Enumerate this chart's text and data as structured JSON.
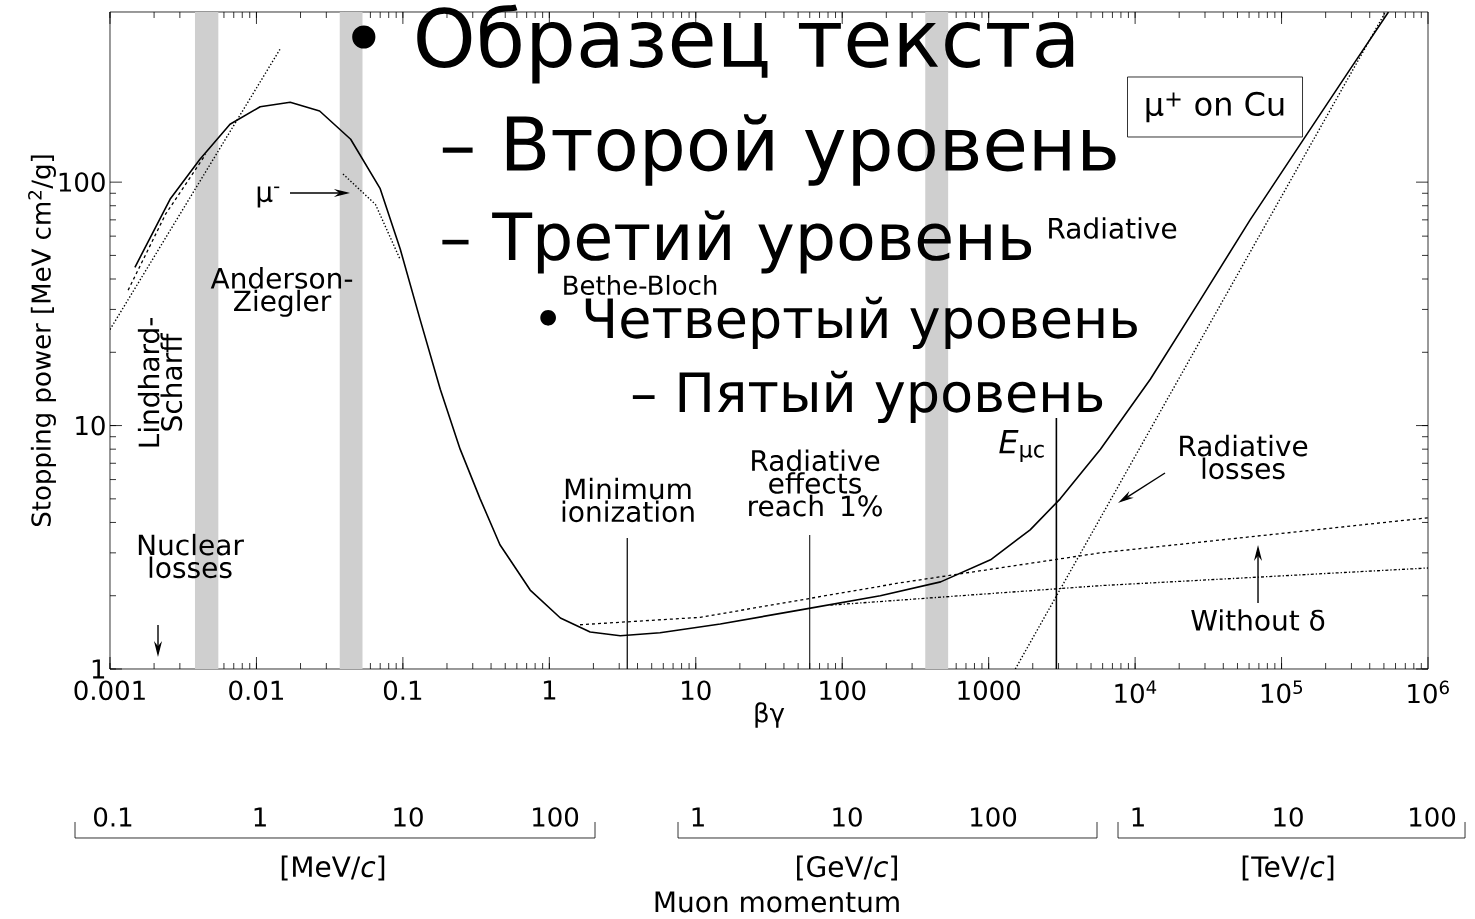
{
  "chart_data": {
    "type": "line",
    "title": "μ$^{+}$ on Cu",
    "xlabel": "βγ",
    "ylabel": "Stopping power [MeV cm$^{2}$/g]",
    "log": "xy",
    "xlim": [
      0.001,
      1000000
    ],
    "ylim": [
      1,
      500
    ],
    "xticks": [
      0.001,
      0.01,
      0.1,
      1,
      10,
      100,
      1000,
      {
        "value": 10000,
        "label": "10$^{4}$"
      },
      {
        "value": 100000,
        "label": "10$^{5}$"
      },
      {
        "value": 1000000,
        "label": "10$^{6}$"
      }
    ],
    "yticks": [
      1,
      10,
      100
    ],
    "series": [
      {
        "color": "#000000",
        "line_style": "solid",
        "x": [
          0.00148,
          0.00257,
          0.0041,
          0.0066,
          0.0106,
          0.017,
          0.027,
          0.044,
          0.07,
          0.096,
          0.131,
          0.18,
          0.246,
          0.337,
          0.46,
          0.74,
          1.19,
          1.9,
          3.05,
          5.7,
          14.7,
          52,
          182,
          470,
          1030,
          1920,
          3080,
          5800,
          12700,
          28000,
          61000,
          134000,
          295000,
          537000
        ],
        "values": [
          44.7,
          85,
          124,
          173,
          204,
          213,
          196,
          150,
          94,
          53,
          27.3,
          14.1,
          8.0,
          5.0,
          3.24,
          2.11,
          1.62,
          1.42,
          1.37,
          1.41,
          1.53,
          1.75,
          2.0,
          2.28,
          2.81,
          3.73,
          5.0,
          8.0,
          15.5,
          33,
          70,
          143,
          292,
          500
        ]
      },
      {
        "color": "#000000",
        "line_style": "dotted",
        "x": [
          0.001,
          0.0145
        ],
        "values": [
          24.8,
          352
        ]
      },
      {
        "color": "#000000",
        "line_style": "dashed",
        "x": [
          0.00133,
          0.0024,
          0.0045
        ],
        "values": [
          36,
          74,
          130
        ]
      },
      {
        "color": "#000000",
        "line_style": "dotted",
        "x": [
          0.039,
          0.065,
          0.096
        ],
        "values": [
          108,
          81,
          48
        ]
      },
      {
        "color": "#000000",
        "line_style": "dashed",
        "x": [
          1.62,
          10.7,
          249,
          5780,
          1000000
        ],
        "values": [
          1.52,
          1.63,
          2.26,
          3.0,
          4.18
        ]
      },
      {
        "color": "#000000",
        "line_style": "dashdot",
        "x": [
          83,
          5780,
          1000000
        ],
        "values": [
          1.83,
          2.2,
          2.6
        ]
      },
      {
        "color": "#000000",
        "line_style": "dotted",
        "x": [
          1520,
          512000
        ],
        "values": [
          1,
          500
        ]
      }
    ],
    "bands": [
      {
        "axis": "x",
        "from": 0.0038,
        "to": 0.0055,
        "color": "#cfcfcf"
      },
      {
        "axis": "x",
        "from": 0.037,
        "to": 0.053,
        "color": "#cfcfcf"
      },
      {
        "axis": "x",
        "from": 369,
        "to": 530,
        "color": "#cfcfcf"
      }
    ],
    "ref_lines": [
      {
        "axis": "x",
        "value": 3.4,
        "label": "Minimum ionization"
      },
      {
        "axis": "x",
        "value": 60,
        "label": "Radiative effects reach 1%"
      },
      {
        "axis": "x",
        "value": 2900,
        "label": "*E*$_{μc}$"
      }
    ],
    "annotations": [
      "Lindhard-Scharff",
      "Anderson-Ziegler",
      "Bethe-Bloch",
      "Radiative",
      "Nuclear losses",
      "Radiative losses",
      "Without δ",
      "μ$^{-}$",
      "• Образец текста",
      "– Второй уровень",
      "– Третий уровень",
      "• Четвертый уровень",
      "– Пятый уровень",
      "[MeV/*c*]",
      "[GeV/*c*]",
      "[TeV/*c*]",
      "0.1",
      "1",
      "10",
      "100",
      "1",
      "10",
      "100",
      "1",
      "10",
      "100",
      "Muon momentum"
    ]
  }
}
